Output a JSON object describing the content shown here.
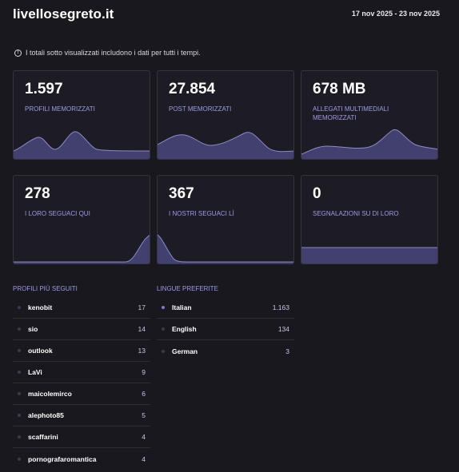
{
  "header": {
    "site": "livellosegreto.it",
    "date_range": "17 nov 2025 - 23 nov 2025"
  },
  "notice": {
    "icon": "info-icon",
    "text": "I totali sotto visualizzati includono i dati per tutti i tempi."
  },
  "colors": {
    "accent": "#9d9ae8",
    "chart_fill": "#42406c",
    "chart_stroke": "#8c89d4",
    "active_dot": "#7b78e0"
  },
  "stats": [
    {
      "value": "1.597",
      "label": "PROFILI MEMORIZZATI"
    },
    {
      "value": "27.854",
      "label": "POST MEMORIZZATI"
    },
    {
      "value": "678 MB",
      "label": "ALLEGATI MULTIMEDIALI MEMORIZZATI"
    },
    {
      "value": "278",
      "label": "I LORO SEGUACI QUI"
    },
    {
      "value": "367",
      "label": "I NOSTRI SEGUACI LÌ"
    },
    {
      "value": "0",
      "label": "SEGNALAZIONI SU DI LORO"
    }
  ],
  "top_profiles": {
    "title": "PROFILI PIÙ SEGUITI",
    "items": [
      {
        "name": "kenobit",
        "count": "17"
      },
      {
        "name": "sio",
        "count": "14"
      },
      {
        "name": "outlook",
        "count": "13"
      },
      {
        "name": "LaVi",
        "count": "9"
      },
      {
        "name": "maicolemirco",
        "count": "6"
      },
      {
        "name": "alephoto85",
        "count": "5"
      },
      {
        "name": "scaffarini",
        "count": "4"
      },
      {
        "name": "pornografaromantica",
        "count": "4"
      }
    ]
  },
  "languages": {
    "title": "LINGUE PREFERITE",
    "items": [
      {
        "name": "Italian",
        "count": "1.163",
        "active": true
      },
      {
        "name": "English",
        "count": "134",
        "active": false
      },
      {
        "name": "German",
        "count": "3",
        "active": false
      }
    ]
  }
}
